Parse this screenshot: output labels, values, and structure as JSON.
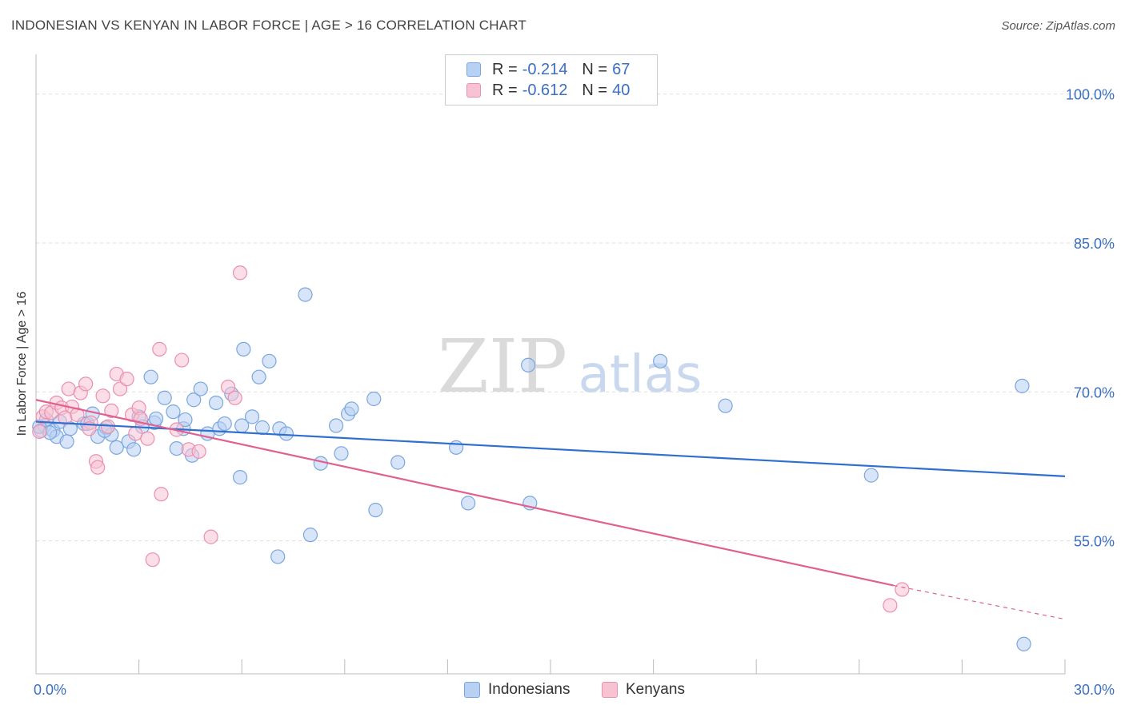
{
  "header": {
    "title": "INDONESIAN VS KENYAN IN LABOR FORCE | AGE > 16 CORRELATION CHART",
    "source": "Source: ZipAtlas.com"
  },
  "watermark": {
    "zip": "ZIP",
    "atlas": "atlas"
  },
  "legend": {
    "rows": [
      {
        "r_label": "R =",
        "r_value": "-0.214",
        "n_label": "N =",
        "n_value": "67"
      },
      {
        "r_label": "R =",
        "r_value": "-0.612",
        "n_label": "N =",
        "n_value": "40"
      }
    ]
  },
  "bottom_legend": {
    "indonesians": "Indonesians",
    "kenyans": "Kenyans"
  },
  "colors": {
    "blue_fill": "#b8d0f2",
    "blue_stroke": "#7aa6e0",
    "blue_line": "#2e6fd0",
    "pink_fill": "#f7c3d3",
    "pink_stroke": "#ec8fae",
    "pink_line": "#e0608f",
    "tick_label": "#3a6fc4",
    "grid": "#dddddd"
  },
  "chart_data": {
    "type": "scatter",
    "title": "INDONESIAN VS KENYAN IN LABOR FORCE | AGE > 16 CORRELATION CHART",
    "xlabel": "",
    "ylabel": "In Labor Force | Age > 16",
    "xlim": [
      0,
      30
    ],
    "ylim": [
      41.6,
      103.2
    ],
    "x_tick_labels": [
      {
        "value": 0,
        "label": "0.0%"
      },
      {
        "value": 30,
        "label": "30.0%"
      }
    ],
    "y_tick_labels": [
      {
        "value": 100,
        "label": "100.0%"
      },
      {
        "value": 85,
        "label": "85.0%"
      },
      {
        "value": 70,
        "label": "70.0%"
      },
      {
        "value": 55,
        "label": "55.0%"
      }
    ],
    "y_gridlines": [
      55,
      70,
      85,
      100
    ],
    "legend_position": "top-center",
    "series": [
      {
        "name": "Indonesians",
        "r": -0.214,
        "n": 67,
        "trend": {
          "x0": 0,
          "y0": 67.0,
          "x1": 30,
          "y1": 61.5
        },
        "points": [
          [
            0.15,
            66.1
          ],
          [
            0.25,
            66.6
          ],
          [
            0.3,
            67.2
          ],
          [
            0.5,
            66.1
          ],
          [
            0.6,
            65.5
          ],
          [
            0.7,
            67.0
          ],
          [
            0.9,
            65.0
          ],
          [
            1.4,
            66.8
          ],
          [
            1.5,
            66.8
          ],
          [
            1.65,
            67.8
          ],
          [
            1.8,
            65.5
          ],
          [
            2.05,
            66.4
          ],
          [
            2.2,
            65.7
          ],
          [
            2.35,
            64.4
          ],
          [
            2.7,
            65.0
          ],
          [
            2.85,
            64.2
          ],
          [
            3.0,
            67.5
          ],
          [
            3.35,
            71.5
          ],
          [
            3.45,
            66.9
          ],
          [
            3.5,
            67.3
          ],
          [
            3.75,
            69.4
          ],
          [
            4.0,
            68.0
          ],
          [
            4.1,
            64.3
          ],
          [
            4.3,
            66.3
          ],
          [
            4.35,
            67.2
          ],
          [
            4.55,
            63.6
          ],
          [
            4.6,
            69.2
          ],
          [
            4.8,
            70.3
          ],
          [
            5.0,
            65.8
          ],
          [
            5.25,
            68.9
          ],
          [
            5.35,
            66.3
          ],
          [
            5.5,
            66.8
          ],
          [
            5.7,
            69.8
          ],
          [
            5.95,
            61.4
          ],
          [
            6.0,
            66.6
          ],
          [
            6.05,
            74.3
          ],
          [
            6.3,
            67.5
          ],
          [
            6.5,
            71.5
          ],
          [
            6.6,
            66.4
          ],
          [
            6.8,
            73.1
          ],
          [
            7.05,
            53.4
          ],
          [
            7.1,
            66.3
          ],
          [
            7.3,
            65.8
          ],
          [
            7.85,
            79.8
          ],
          [
            8.0,
            55.6
          ],
          [
            8.3,
            62.8
          ],
          [
            8.75,
            66.6
          ],
          [
            8.9,
            63.8
          ],
          [
            9.1,
            67.8
          ],
          [
            9.2,
            68.3
          ],
          [
            9.85,
            69.3
          ],
          [
            9.9,
            58.1
          ],
          [
            10.55,
            62.9
          ],
          [
            12.25,
            64.4
          ],
          [
            12.6,
            58.8
          ],
          [
            14.35,
            72.7
          ],
          [
            14.4,
            58.8
          ],
          [
            18.2,
            73.1
          ],
          [
            20.1,
            68.6
          ],
          [
            24.35,
            61.6
          ],
          [
            28.75,
            70.6
          ],
          [
            28.8,
            44.6
          ],
          [
            0.1,
            66.5
          ],
          [
            0.4,
            65.9
          ],
          [
            1.0,
            66.3
          ],
          [
            3.1,
            66.5
          ],
          [
            2.0,
            66.1
          ]
        ]
      },
      {
        "name": "Kenyans",
        "r": -0.612,
        "n": 40,
        "trend": {
          "x0": 0,
          "y0": 69.2,
          "x1": 25.0,
          "y1": 50.5,
          "dash_to_x": 30,
          "dash_to_y": 47.1
        },
        "points": [
          [
            0.2,
            67.5
          ],
          [
            0.3,
            68.0
          ],
          [
            0.45,
            67.9
          ],
          [
            0.6,
            68.9
          ],
          [
            0.75,
            68.4
          ],
          [
            0.85,
            67.4
          ],
          [
            0.95,
            70.3
          ],
          [
            1.05,
            68.5
          ],
          [
            1.2,
            67.7
          ],
          [
            1.3,
            69.9
          ],
          [
            1.45,
            70.8
          ],
          [
            1.6,
            66.9
          ],
          [
            1.75,
            63.0
          ],
          [
            1.8,
            62.4
          ],
          [
            1.95,
            69.6
          ],
          [
            2.1,
            66.5
          ],
          [
            2.2,
            68.1
          ],
          [
            2.35,
            71.8
          ],
          [
            2.45,
            70.3
          ],
          [
            2.65,
            71.3
          ],
          [
            2.8,
            67.7
          ],
          [
            2.9,
            65.8
          ],
          [
            3.0,
            68.4
          ],
          [
            3.05,
            67.3
          ],
          [
            3.25,
            65.3
          ],
          [
            3.4,
            53.1
          ],
          [
            3.6,
            74.3
          ],
          [
            3.65,
            59.7
          ],
          [
            4.1,
            66.2
          ],
          [
            4.25,
            73.2
          ],
          [
            4.45,
            64.2
          ],
          [
            4.75,
            64.0
          ],
          [
            5.1,
            55.4
          ],
          [
            5.6,
            70.5
          ],
          [
            5.8,
            69.4
          ],
          [
            5.95,
            82.0
          ],
          [
            24.9,
            48.5
          ],
          [
            25.25,
            50.1
          ],
          [
            0.1,
            66.0
          ],
          [
            1.55,
            66.3
          ]
        ]
      }
    ]
  }
}
